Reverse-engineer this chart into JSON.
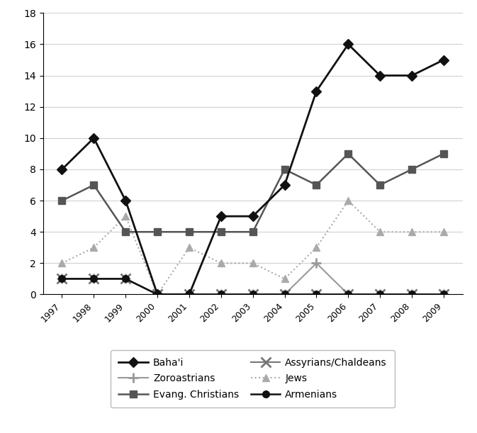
{
  "years": [
    1997,
    1998,
    1999,
    2000,
    2001,
    2002,
    2003,
    2004,
    2005,
    2006,
    2007,
    2008,
    2009
  ],
  "series": {
    "Baha'i": [
      8,
      10,
      6,
      0,
      0,
      5,
      5,
      7,
      13,
      16,
      14,
      14,
      15
    ],
    "Evang. Christians": [
      6,
      7,
      4,
      4,
      4,
      4,
      4,
      8,
      7,
      9,
      7,
      8,
      9
    ],
    "Jews": [
      2,
      3,
      5,
      0,
      3,
      2,
      2,
      1,
      3,
      6,
      4,
      4,
      4
    ],
    "Zoroastrians": [
      1,
      1,
      1,
      0,
      0,
      0,
      0,
      0,
      2,
      0,
      0,
      0,
      0
    ],
    "Assyrians/Chaldeans": [
      1,
      1,
      1,
      0,
      0,
      0,
      0,
      0,
      0,
      0,
      0,
      0,
      0
    ],
    "Armenians": [
      1,
      1,
      1,
      0,
      0,
      0,
      0,
      0,
      0,
      0,
      0,
      0,
      0
    ]
  },
  "colors": {
    "Baha'i": "#111111",
    "Evang. Christians": "#555555",
    "Jews": "#aaaaaa",
    "Zoroastrians": "#999999",
    "Assyrians/Chaldeans": "#777777",
    "Armenians": "#111111"
  },
  "markers": {
    "Baha'i": "D",
    "Evang. Christians": "s",
    "Jews": "^",
    "Zoroastrians": "+",
    "Assyrians/Chaldeans": "x",
    "Armenians": "o"
  },
  "linestyles": {
    "Baha'i": "solid",
    "Evang. Christians": "solid",
    "Jews": "dotted",
    "Zoroastrians": "solid",
    "Assyrians/Chaldeans": "solid",
    "Armenians": "solid"
  },
  "markersizes": {
    "Baha'i": 7,
    "Evang. Christians": 7,
    "Jews": 7,
    "Zoroastrians": 10,
    "Assyrians/Chaldeans": 10,
    "Armenians": 7
  },
  "linewidths": {
    "Baha'i": 2.0,
    "Evang. Christians": 1.8,
    "Jews": 1.5,
    "Zoroastrians": 1.5,
    "Assyrians/Chaldeans": 1.5,
    "Armenians": 1.8
  },
  "ylim": [
    0,
    18
  ],
  "yticks": [
    0,
    2,
    4,
    6,
    8,
    10,
    12,
    14,
    16,
    18
  ],
  "legend_col1": [
    "Baha'i",
    "Evang. Christians",
    "Jews"
  ],
  "legend_col2": [
    "Zoroastrians",
    "Assyrians/Chaldeans",
    "Armenians"
  ]
}
